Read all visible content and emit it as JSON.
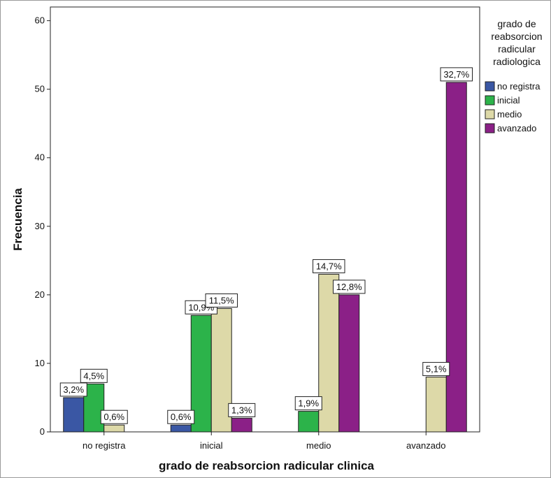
{
  "chart_data": {
    "type": "bar",
    "xlabel": "grado de reabsorcion radicular clinica",
    "ylabel": "Frecuencia",
    "ylim": [
      0,
      62
    ],
    "yticks": [
      0,
      10,
      20,
      30,
      40,
      50,
      60
    ],
    "grid": false,
    "legend_placement": "right",
    "legend_title": [
      "grado de",
      "reabsorcion",
      "radicular",
      "radiologica"
    ],
    "categories": [
      "no registra",
      "inicial",
      "medio",
      "avanzado"
    ],
    "series": [
      {
        "name": "no registra",
        "color": "#3a57a4",
        "values": [
          5,
          1,
          null,
          null
        ],
        "labels": [
          "3,2%",
          "0,6%",
          null,
          null
        ]
      },
      {
        "name": "inicial",
        "color": "#2cb34a",
        "values": [
          7,
          17,
          3,
          null
        ],
        "labels": [
          "4,5%",
          "10,9%",
          "1,9%",
          null
        ]
      },
      {
        "name": "medio",
        "color": "#ddd9a8",
        "values": [
          1,
          18,
          23,
          8
        ],
        "labels": [
          "0,6%",
          "11,5%",
          "14,7%",
          "5,1%"
        ]
      },
      {
        "name": "avanzado",
        "color": "#8b2087",
        "values": [
          null,
          2,
          20,
          51
        ],
        "labels": [
          null,
          "1,3%",
          "12,8%",
          "32,7%"
        ]
      }
    ]
  }
}
